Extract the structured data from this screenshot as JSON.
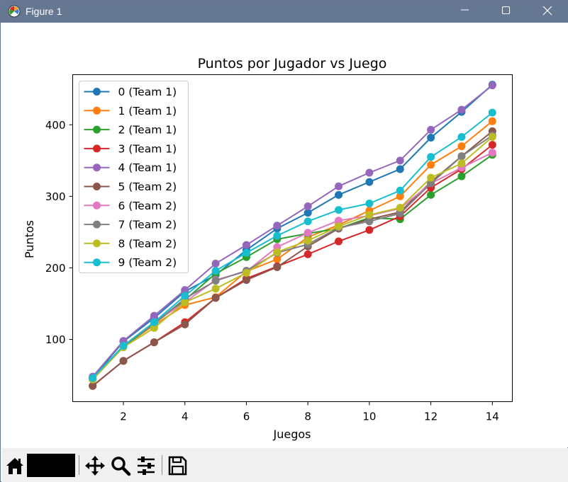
{
  "window": {
    "title": "Figure 1"
  },
  "icons": {
    "app": "matplotlib-figure-icon",
    "minimize": "minimize-icon",
    "maximize": "maximize-icon",
    "close": "close-icon",
    "home": "home-icon",
    "move": "move-icon",
    "zoom": "zoom-icon",
    "configure": "configure-subplots-icon",
    "save": "save-icon"
  },
  "chart_data": {
    "type": "line",
    "title": "Puntos por Jugador vs Juego",
    "xlabel": "Juegos",
    "ylabel": "Puntos",
    "xlim": [
      0.35,
      14.65
    ],
    "ylim": [
      13,
      470
    ],
    "xticks": [
      2,
      4,
      6,
      8,
      10,
      12,
      14
    ],
    "yticks": [
      100,
      200,
      300,
      400
    ],
    "grid": false,
    "legend_location": "upper-left",
    "x": [
      1,
      2,
      3,
      4,
      5,
      6,
      7,
      8,
      9,
      10,
      11,
      12,
      13,
      14
    ],
    "series": [
      {
        "name": "0 (Team 1)",
        "color": "#1f77b4",
        "values": [
          46,
          97,
          130,
          167,
          190,
          225,
          255,
          277,
          302,
          320,
          338,
          382,
          418,
          456
        ]
      },
      {
        "name": "1 (Team 1)",
        "color": "#ff7f0e",
        "values": [
          44,
          90,
          120,
          148,
          159,
          195,
          212,
          243,
          260,
          280,
          300,
          344,
          370,
          405
        ]
      },
      {
        "name": "2 (Team 1)",
        "color": "#2ca02c",
        "values": [
          44,
          90,
          122,
          155,
          192,
          215,
          240,
          248,
          255,
          270,
          268,
          302,
          328,
          358
        ]
      },
      {
        "name": "3 (Team 1)",
        "color": "#d62728",
        "values": [
          35,
          70,
          96,
          124,
          158,
          185,
          202,
          219,
          237,
          253,
          272,
          312,
          338,
          372
        ]
      },
      {
        "name": "4 (Team 1)",
        "color": "#9467bd",
        "values": [
          48,
          98,
          133,
          169,
          206,
          232,
          259,
          286,
          314,
          333,
          350,
          393,
          421,
          455
        ]
      },
      {
        "name": "5 (Team 2)",
        "color": "#8c564b",
        "values": [
          35,
          70,
          96,
          121,
          158,
          183,
          201,
          230,
          255,
          268,
          278,
          320,
          356,
          391
        ]
      },
      {
        "name": "6 (Team 2)",
        "color": "#e377c2",
        "values": [
          45,
          91,
          124,
          152,
          183,
          195,
          229,
          249,
          266,
          273,
          283,
          318,
          340,
          361
        ]
      },
      {
        "name": "7 (Team 2)",
        "color": "#7f7f7f",
        "values": [
          45,
          91,
          122,
          157,
          182,
          196,
          221,
          233,
          256,
          265,
          276,
          318,
          356,
          385
        ]
      },
      {
        "name": "8 (Team 2)",
        "color": "#bcbd22",
        "values": [
          44,
          89,
          116,
          152,
          171,
          193,
          222,
          238,
          258,
          274,
          284,
          326,
          346,
          383
        ]
      },
      {
        "name": "9 (Team 2)",
        "color": "#17becf",
        "values": [
          46,
          91,
          124,
          161,
          196,
          221,
          245,
          265,
          281,
          290,
          308,
          355,
          383,
          417
        ]
      }
    ]
  }
}
